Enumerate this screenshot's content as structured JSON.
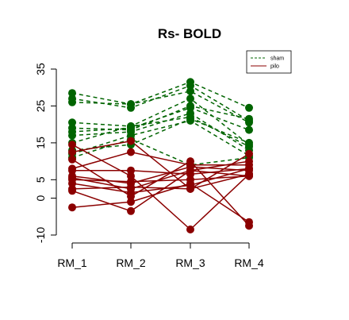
{
  "chart_data": {
    "type": "line",
    "title": "Rs- BOLD",
    "xlabel": "",
    "ylabel": "",
    "categories": [
      "RM_1",
      "RM_2",
      "RM_3",
      "RM_4"
    ],
    "ylim": [
      -10,
      35
    ],
    "yticks": [
      -10,
      0,
      5,
      15,
      25,
      35
    ],
    "grid": false,
    "legend_position": "top-right",
    "groups": [
      {
        "name": "sham",
        "color": "#006400",
        "line_style": "dashed",
        "series": [
          {
            "values": [
              28.5,
              25.5,
              31.5,
              24.5
            ]
          },
          {
            "values": [
              27,
              24.5,
              30.5,
              21
            ]
          },
          {
            "values": [
              26,
              25.5,
              29,
              20.5
            ]
          },
          {
            "values": [
              20.5,
              19.5,
              27,
              14.5
            ]
          },
          {
            "values": [
              19,
              18.5,
              25,
              21.5
            ]
          },
          {
            "values": [
              18,
              19,
              24.5,
              18.5
            ]
          },
          {
            "values": [
              17,
              18,
              23,
              13
            ]
          },
          {
            "values": [
              15,
              19.5,
              22,
              14
            ]
          },
          {
            "values": [
              13,
              14.5,
              21.5,
              15
            ]
          },
          {
            "values": [
              12,
              17,
              21,
              11.5
            ]
          },
          {
            "values": [
              11,
              16,
              9,
              11
            ]
          }
        ]
      },
      {
        "name": "pilo",
        "color": "#8B0000",
        "line_style": "solid",
        "series": [
          {
            "values": [
              14.5,
              6,
              -8.5,
              6.5
            ]
          },
          {
            "values": [
              12.5,
              15.5,
              2.5,
              12
            ]
          },
          {
            "values": [
              10.5,
              0.5,
              10,
              -7.5
            ]
          },
          {
            "values": [
              8,
              12.5,
              9,
              9
            ]
          },
          {
            "values": [
              7.5,
              7.5,
              6.5,
              8
            ]
          },
          {
            "values": [
              6,
              4,
              8.5,
              7.5
            ]
          },
          {
            "values": [
              5.5,
              2.5,
              7.5,
              10
            ]
          },
          {
            "values": [
              5,
              4.5,
              5,
              6
            ]
          },
          {
            "values": [
              4,
              1.5,
              3.5,
              8
            ]
          },
          {
            "values": [
              2.5,
              3,
              2.5,
              6.5
            ]
          },
          {
            "values": [
              2,
              -3.5,
              7.5,
              6
            ]
          },
          {
            "values": [
              -2.5,
              -1,
              4,
              -6.5
            ]
          }
        ]
      }
    ]
  }
}
